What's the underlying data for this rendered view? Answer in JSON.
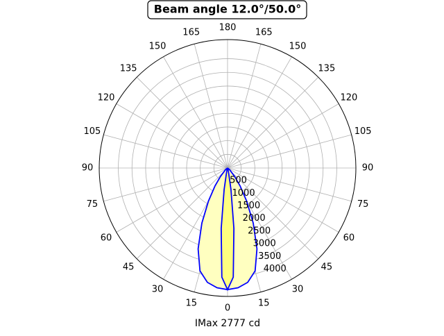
{
  "chart_data": {
    "type": "polar",
    "title": "Beam angle 12.0°/50.0°",
    "xlabel": "IMax 2777 cd",
    "rlim": [
      0,
      4700
    ],
    "rticks": [
      500,
      1000,
      1500,
      2000,
      2500,
      3000,
      3500,
      4000
    ],
    "thetaticks": [
      0,
      15,
      30,
      45,
      60,
      75,
      90,
      105,
      120,
      135,
      150,
      165,
      180,
      {
        "value": -15,
        "label": "15"
      },
      {
        "value": -30,
        "label": "30"
      },
      {
        "value": -45,
        "label": "45"
      },
      {
        "value": -60,
        "label": "60"
      },
      {
        "value": -75,
        "label": "75"
      },
      {
        "value": -90,
        "label": "90"
      },
      {
        "value": -105,
        "label": "105"
      },
      {
        "value": -120,
        "label": "120"
      },
      {
        "value": -135,
        "label": "135"
      },
      {
        "value": -150,
        "label": "150"
      },
      {
        "value": -165,
        "label": "165"
      }
    ],
    "grid": true,
    "series": [
      {
        "color": "#0000ff",
        "fill": "#ffffc0",
        "x": [
          -90,
          -50,
          -40,
          -35,
          -30,
          -25,
          -20,
          -15,
          -10,
          -5,
          0,
          5,
          10,
          15,
          20,
          25,
          30,
          35,
          40,
          50,
          90
        ],
        "values": [
          0,
          100,
          400,
          800,
          1400,
          2225,
          3150,
          3900,
          4250,
          4400,
          4450,
          4400,
          4250,
          3900,
          3150,
          2225,
          1400,
          800,
          400,
          100,
          0
        ]
      },
      {
        "color": "#0000ff",
        "fill": "#ffff80",
        "x": [
          -90,
          -20,
          -12,
          -9,
          -6,
          -3,
          0,
          3,
          6,
          9,
          12,
          20,
          90
        ],
        "values": [
          0,
          50,
          200,
          800,
          2225,
          4000,
          4450,
          4000,
          2225,
          800,
          200,
          50,
          0
        ]
      }
    ]
  }
}
